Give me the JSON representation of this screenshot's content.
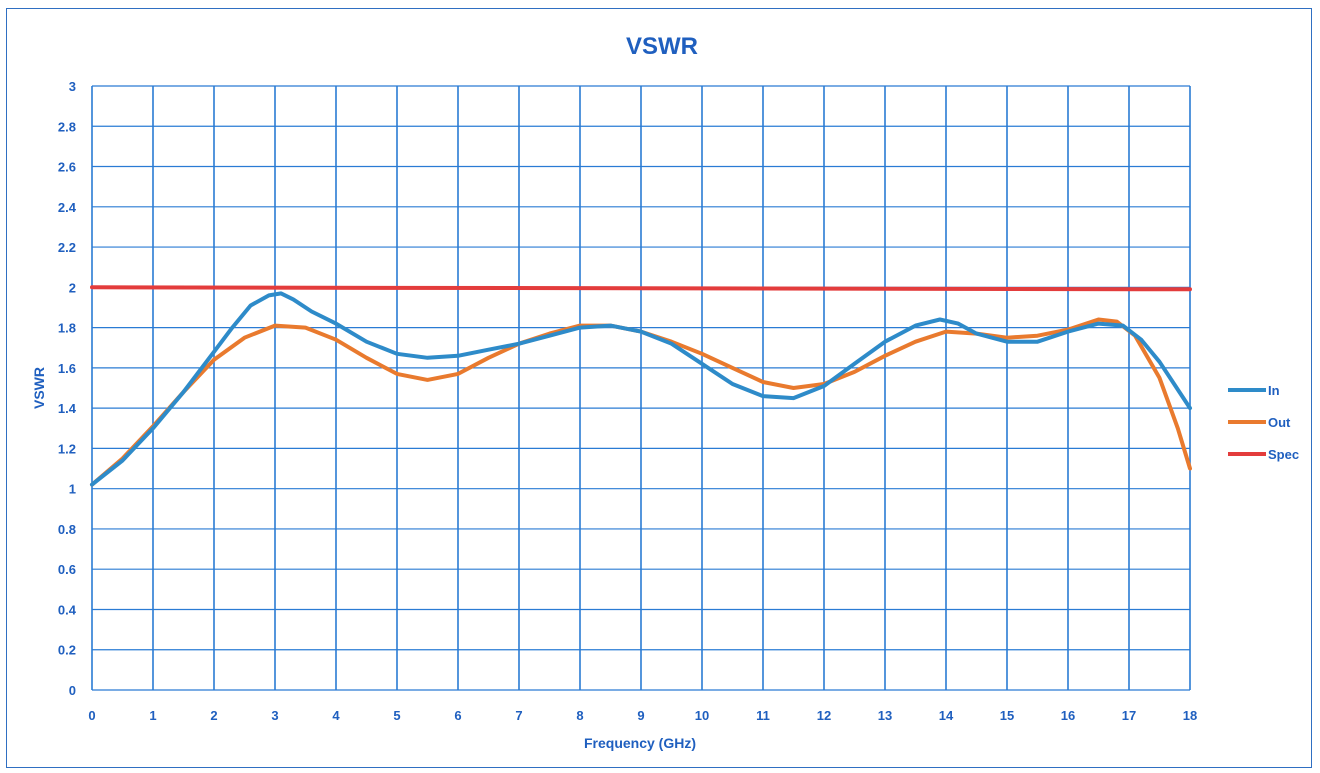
{
  "chart_data": {
    "type": "line",
    "title": "VSWR",
    "xlabel": "Frequency (GHz)",
    "ylabel": "VSWR",
    "xlim": [
      0,
      18
    ],
    "ylim": [
      0,
      3
    ],
    "x_ticks": [
      "0",
      "1",
      "2",
      "3",
      "4",
      "5",
      "6",
      "7",
      "8",
      "9",
      "10",
      "11",
      "12",
      "13",
      "14",
      "15",
      "16",
      "17",
      "18"
    ],
    "y_ticks": [
      "0",
      "0.2",
      "0.4",
      "0.6",
      "0.8",
      "1",
      "1.2",
      "1.4",
      "1.6",
      "1.8",
      "2",
      "2.2",
      "2.4",
      "2.6",
      "2.8",
      "3"
    ],
    "grid": true,
    "legend_position": "right",
    "series": [
      {
        "name": "In",
        "color": "#2e8bc9",
        "points": [
          [
            0,
            1.02
          ],
          [
            0.5,
            1.14
          ],
          [
            1,
            1.3
          ],
          [
            1.5,
            1.48
          ],
          [
            2,
            1.68
          ],
          [
            2.3,
            1.8
          ],
          [
            2.6,
            1.91
          ],
          [
            2.9,
            1.96
          ],
          [
            3.1,
            1.97
          ],
          [
            3.3,
            1.94
          ],
          [
            3.6,
            1.88
          ],
          [
            4,
            1.82
          ],
          [
            4.5,
            1.73
          ],
          [
            5,
            1.67
          ],
          [
            5.5,
            1.65
          ],
          [
            6,
            1.66
          ],
          [
            6.5,
            1.69
          ],
          [
            7,
            1.72
          ],
          [
            7.5,
            1.76
          ],
          [
            8,
            1.8
          ],
          [
            8.5,
            1.81
          ],
          [
            9,
            1.78
          ],
          [
            9.5,
            1.72
          ],
          [
            10,
            1.62
          ],
          [
            10.5,
            1.52
          ],
          [
            11,
            1.46
          ],
          [
            11.5,
            1.45
          ],
          [
            12,
            1.51
          ],
          [
            12.5,
            1.62
          ],
          [
            13,
            1.73
          ],
          [
            13.5,
            1.81
          ],
          [
            13.9,
            1.84
          ],
          [
            14.2,
            1.82
          ],
          [
            14.5,
            1.77
          ],
          [
            15,
            1.73
          ],
          [
            15.5,
            1.73
          ],
          [
            16,
            1.78
          ],
          [
            16.5,
            1.82
          ],
          [
            16.9,
            1.81
          ],
          [
            17.2,
            1.74
          ],
          [
            17.5,
            1.63
          ],
          [
            18,
            1.4
          ]
        ]
      },
      {
        "name": "Out",
        "color": "#e97a2e",
        "points": [
          [
            0,
            1.02
          ],
          [
            0.5,
            1.15
          ],
          [
            1,
            1.31
          ],
          [
            1.5,
            1.48
          ],
          [
            2,
            1.64
          ],
          [
            2.5,
            1.75
          ],
          [
            3,
            1.81
          ],
          [
            3.5,
            1.8
          ],
          [
            4,
            1.74
          ],
          [
            4.5,
            1.65
          ],
          [
            5,
            1.57
          ],
          [
            5.5,
            1.54
          ],
          [
            6,
            1.57
          ],
          [
            6.5,
            1.65
          ],
          [
            7,
            1.72
          ],
          [
            7.5,
            1.77
          ],
          [
            8,
            1.81
          ],
          [
            8.5,
            1.81
          ],
          [
            9,
            1.78
          ],
          [
            9.5,
            1.73
          ],
          [
            10,
            1.67
          ],
          [
            10.5,
            1.6
          ],
          [
            11,
            1.53
          ],
          [
            11.5,
            1.5
          ],
          [
            12,
            1.52
          ],
          [
            12.5,
            1.58
          ],
          [
            13,
            1.66
          ],
          [
            13.5,
            1.73
          ],
          [
            14,
            1.78
          ],
          [
            14.5,
            1.77
          ],
          [
            15,
            1.75
          ],
          [
            15.5,
            1.76
          ],
          [
            16,
            1.79
          ],
          [
            16.5,
            1.84
          ],
          [
            16.8,
            1.83
          ],
          [
            17.1,
            1.76
          ],
          [
            17.5,
            1.55
          ],
          [
            17.8,
            1.3
          ],
          [
            18,
            1.1
          ]
        ]
      },
      {
        "name": "Spec",
        "color": "#e33c3c",
        "points": [
          [
            0,
            2.0
          ],
          [
            18,
            1.99
          ]
        ]
      }
    ]
  }
}
